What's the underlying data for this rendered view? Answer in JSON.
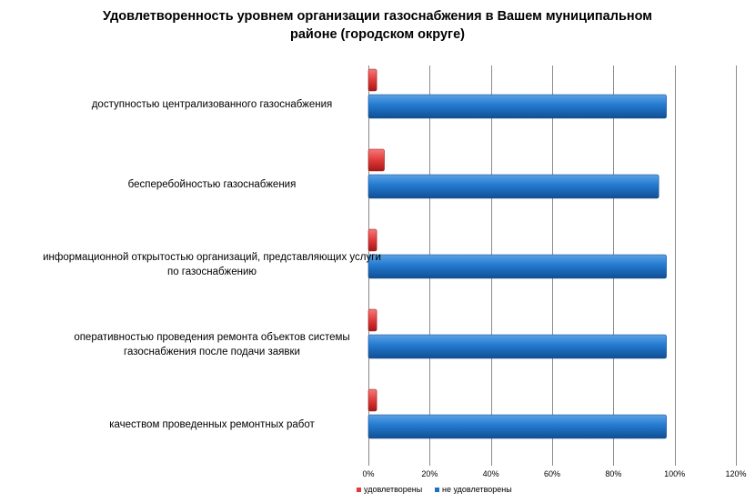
{
  "chart_data": {
    "type": "bar",
    "orientation": "horizontal",
    "title_lines": [
      "Удовлетворенность уровнем организации газоснабжения в Вашем муниципальном",
      "районе (городском округе)"
    ],
    "categories": [
      [
        "доступностью централизованного газоснабжения"
      ],
      [
        "бесперебойностью газоснабжения"
      ],
      [
        "информационной открытостью организаций, представляющих услуги",
        "по газоснабжению"
      ],
      [
        "оперативностью проведения ремонта объектов системы",
        "газоснабжения после подачи заявки"
      ],
      [
        "качеством проведенных ремонтных работ"
      ]
    ],
    "series": [
      {
        "name": "удовлетворены",
        "color": "#e03a3a",
        "values": [
          2.7,
          5.2,
          2.7,
          2.7,
          2.7
        ]
      },
      {
        "name": "не удовлетворены",
        "color": "#1f6fbf",
        "values": [
          97.3,
          94.8,
          97.3,
          97.3,
          97.3
        ]
      }
    ],
    "xlim": [
      0,
      120
    ],
    "ticks": [
      0,
      20,
      40,
      60,
      80,
      100,
      120
    ],
    "tick_suffix": "%",
    "grid": true,
    "legend_position": "bottom"
  }
}
